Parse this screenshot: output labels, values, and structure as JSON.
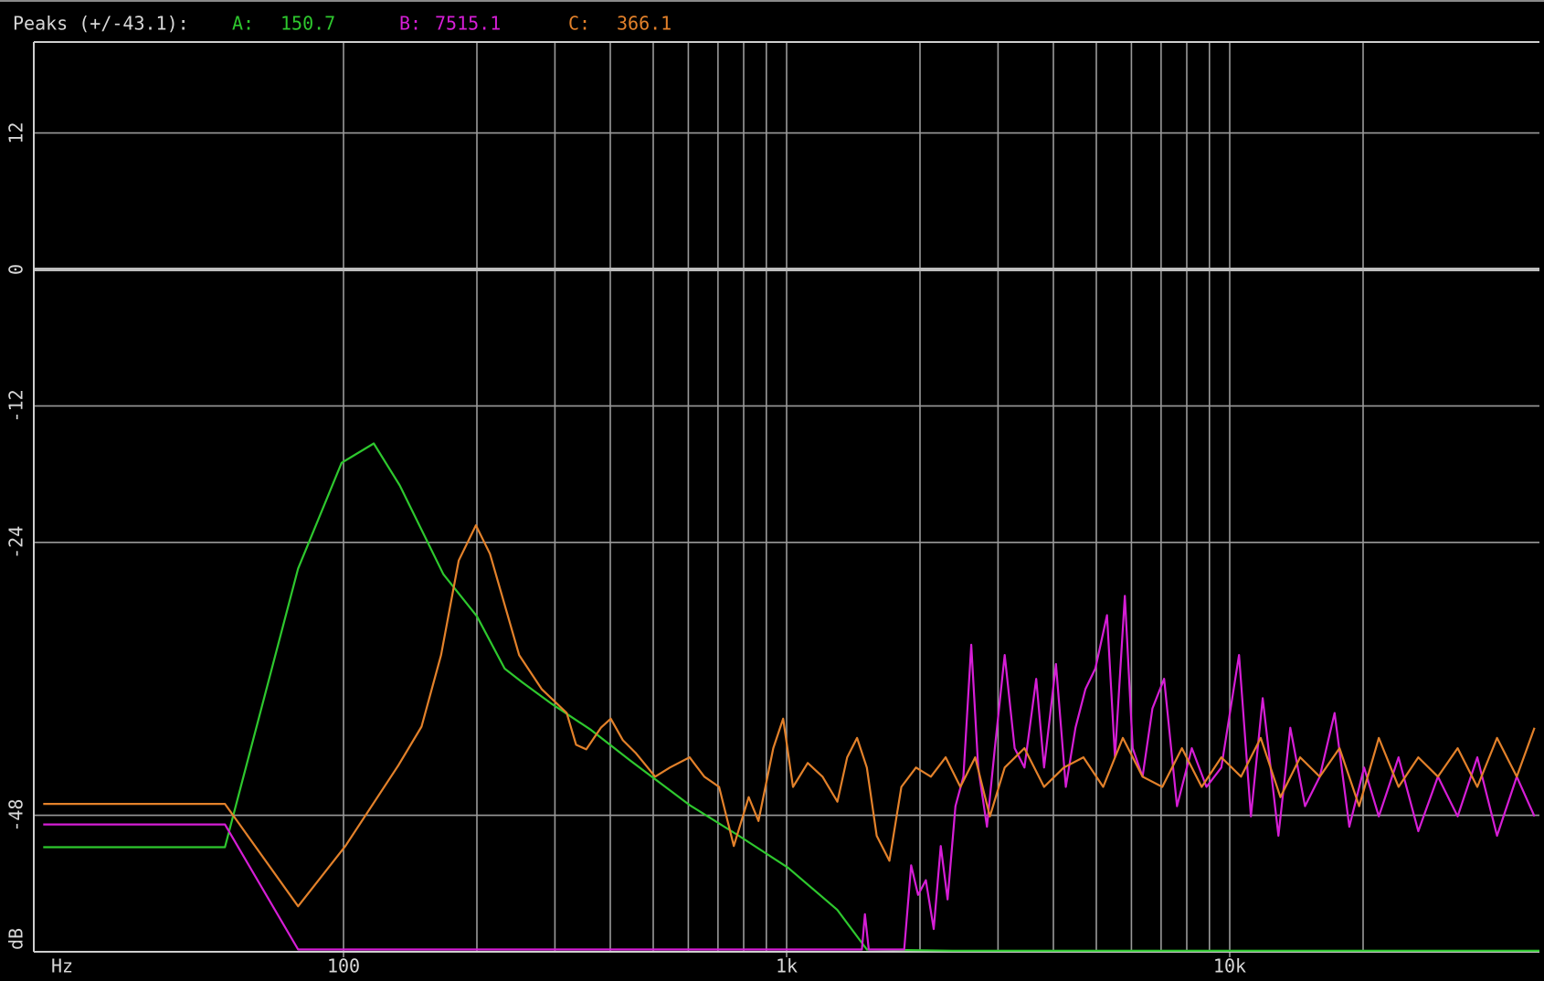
{
  "chart_data": {
    "type": "line",
    "peaks_label": "Peaks (+/-43.1):",
    "xlabel": "Hz",
    "ylabel": "dB",
    "xscale": "log",
    "xlim": [
      20,
      50000
    ],
    "ylim": [
      -60,
      20
    ],
    "xticks": [
      100,
      {
        "value": 1000,
        "label": "1k"
      },
      {
        "value": 10000,
        "label": "10k"
      }
    ],
    "xgrid": [
      100,
      200,
      300,
      400,
      500,
      600,
      700,
      800,
      900,
      1000,
      2000,
      3000,
      4000,
      5000,
      6000,
      7000,
      8000,
      9000,
      10000,
      20000
    ],
    "yticks": [
      12,
      0,
      -12,
      -24,
      -48
    ],
    "grid": true,
    "series": [
      {
        "name": "A:",
        "peak": 150.7,
        "color": "#2ec82e",
        "x": [
          21,
          54,
          79,
          99,
          117,
          134,
          168,
          200,
          231,
          253,
          295,
          362,
          444,
          604,
          780,
          1007,
          1300,
          1517,
          2368,
          50000
        ],
        "values": [
          -50.8,
          -50.8,
          -26.3,
          -17.0,
          -15.3,
          -19.0,
          -26.8,
          -30.5,
          -35.1,
          -36.3,
          -38.2,
          -40.5,
          -43.2,
          -47.1,
          -49.8,
          -52.6,
          -56.3,
          -59.8,
          -59.9,
          -59.9
        ]
      },
      {
        "name": "B:",
        "peak": 7515.1,
        "color": "#d61ed6",
        "x": [
          21,
          54,
          79,
          1479,
          1502,
          1532,
          1842,
          1910,
          1980,
          2062,
          2148,
          2228,
          2308,
          2404,
          2506,
          2610,
          2706,
          2833,
          2951,
          3106,
          3270,
          3441,
          3658,
          3811,
          4053,
          4266,
          4488,
          4725,
          4973,
          5286,
          5508,
          5798,
          6040,
          6358,
          6693,
          7112,
          7604,
          8212,
          8866,
          9572,
          10495,
          11163,
          11868,
          12882,
          13697,
          14791,
          15971,
          17246,
          18619,
          20101,
          21706,
          24045,
          26636,
          29507,
          32687,
          36211,
          40114,
          44437,
          48732
        ],
        "values": [
          -48.8,
          -48.8,
          -59.8,
          -59.8,
          -56.7,
          -59.8,
          -59.8,
          -52.4,
          -55.0,
          -53.7,
          -58.0,
          -50.7,
          -55.4,
          -47.2,
          -44.6,
          -33.0,
          -43.8,
          -49.0,
          -42.1,
          -33.9,
          -42.1,
          -43.8,
          -36.0,
          -43.8,
          -34.7,
          -45.5,
          -40.3,
          -36.9,
          -35.1,
          -30.4,
          -42.9,
          -28.7,
          -42.1,
          -44.6,
          -38.6,
          -36.0,
          -47.2,
          -42.1,
          -45.5,
          -43.8,
          -33.9,
          -48.1,
          -37.7,
          -49.8,
          -40.3,
          -47.2,
          -44.6,
          -39.0,
          -49.0,
          -43.8,
          -48.1,
          -42.9,
          -49.4,
          -44.6,
          -48.1,
          -42.9,
          -49.8,
          -44.6,
          -48.1
        ]
      },
      {
        "name": "C:",
        "peak": 366.1,
        "color": "#e3812a",
        "x": [
          21,
          54,
          79,
          101,
          133,
          150,
          166,
          182,
          199,
          214,
          249,
          280,
          319,
          335,
          353,
          381,
          401,
          427,
          456,
          505,
          545,
          604,
          652,
          704,
          760,
          821,
          864,
          933,
          982,
          1034,
          1116,
          1205,
          1302,
          1370,
          1442,
          1517,
          1597,
          1706,
          1815,
          1959,
          2116,
          2285,
          2467,
          2664,
          2876,
          3106,
          3441,
          3811,
          4222,
          4677,
          5181,
          5739,
          6358,
          7043,
          7802,
          8643,
          9572,
          10606,
          11748,
          13014,
          14418,
          15971,
          17692,
          19595,
          21706,
          24045,
          26636,
          29507,
          32687,
          36211,
          40114,
          44437,
          48732
        ],
        "values": [
          -47.0,
          -47.0,
          -56.0,
          -50.7,
          -43.6,
          -40.2,
          -33.9,
          -25.6,
          -22.5,
          -25.0,
          -33.9,
          -36.9,
          -39.0,
          -41.8,
          -42.2,
          -40.3,
          -39.5,
          -41.4,
          -42.5,
          -44.6,
          -43.8,
          -42.9,
          -44.6,
          -45.5,
          -50.7,
          -46.4,
          -48.5,
          -42.1,
          -39.5,
          -45.5,
          -43.4,
          -44.6,
          -46.8,
          -42.9,
          -41.2,
          -43.8,
          -49.8,
          -52.0,
          -45.5,
          -43.8,
          -44.6,
          -42.9,
          -45.5,
          -42.9,
          -48.1,
          -43.8,
          -42.1,
          -45.5,
          -43.8,
          -42.9,
          -45.5,
          -41.2,
          -44.6,
          -45.5,
          -42.1,
          -45.5,
          -42.9,
          -44.6,
          -41.2,
          -46.4,
          -42.9,
          -44.6,
          -42.1,
          -47.2,
          -41.2,
          -45.5,
          -42.9,
          -44.6,
          -42.1,
          -45.5,
          -41.2,
          -44.6,
          -40.3
        ]
      }
    ]
  }
}
